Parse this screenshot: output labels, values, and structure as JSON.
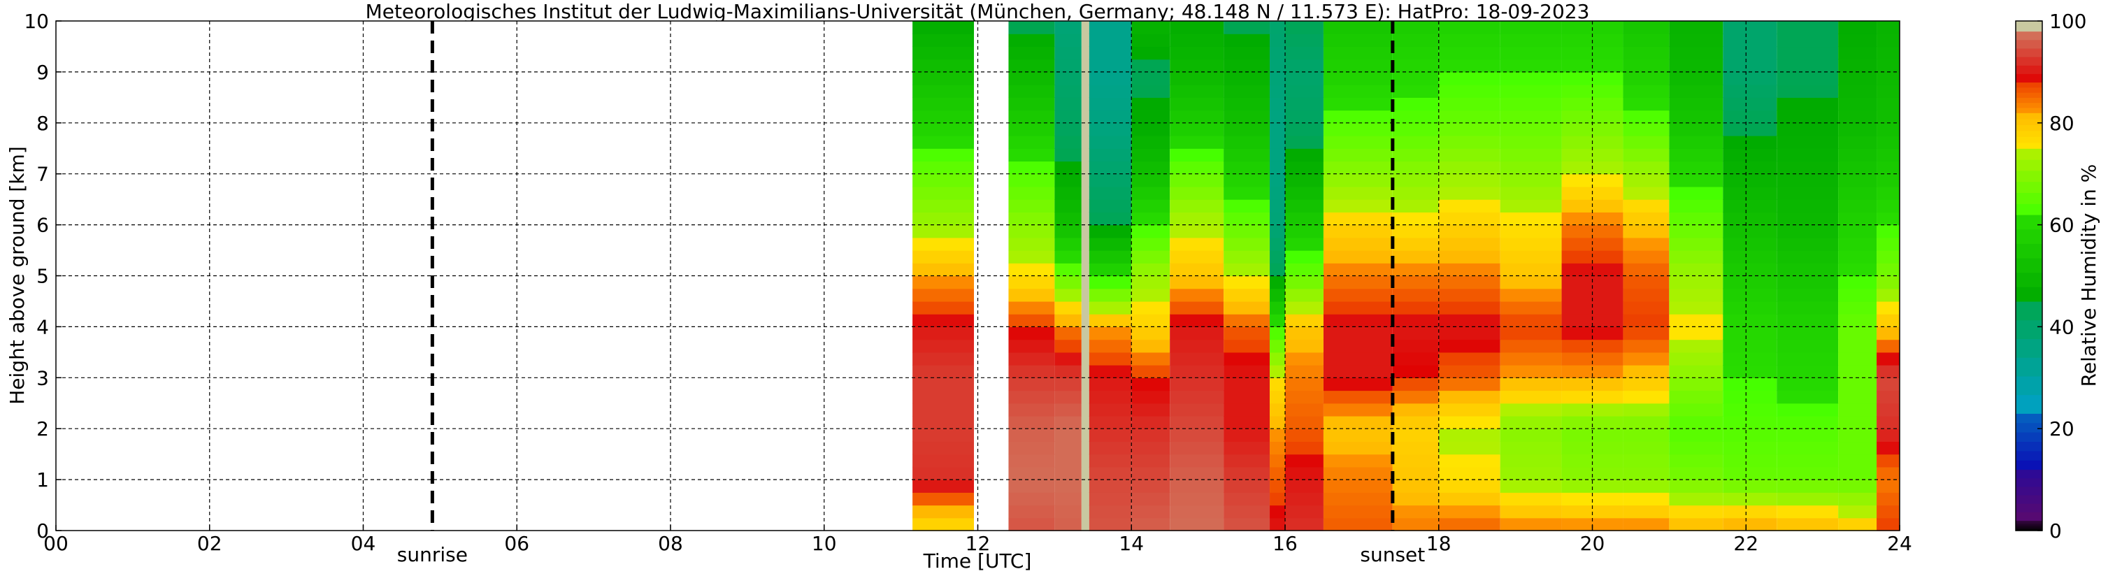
{
  "chart_data": {
    "type": "heatmap",
    "title": "Meteorologisches Institut der Ludwig-Maximilians-Universität (München, Germany; 48.148 N / 11.573 E):    HatPro: 18-09-2023",
    "xlabel": "Time [UTC]",
    "ylabel": "Height above ground [km]",
    "xlim": [
      0,
      24
    ],
    "ylim": [
      0,
      10
    ],
    "x_ticks": [
      "00",
      "02",
      "04",
      "06",
      "08",
      "10",
      "12",
      "14",
      "16",
      "18",
      "20",
      "22",
      "24"
    ],
    "y_ticks": [
      "0",
      "1",
      "2",
      "3",
      "4",
      "5",
      "6",
      "7",
      "8",
      "9",
      "10"
    ],
    "grid": true,
    "colorbar": {
      "label": "Relative Humidity in %",
      "range": [
        0,
        100
      ],
      "ticks": [
        "0",
        "20",
        "40",
        "60",
        "80",
        "100"
      ],
      "colors": [
        {
          "from": 0,
          "to": 2,
          "color": "#000000"
        },
        {
          "from": 2,
          "to": 12,
          "color": "#5a0a6e"
        },
        {
          "from": 12,
          "to": 23,
          "color": "#0a0ab4"
        },
        {
          "from": 23,
          "to": 45,
          "color": "#00a0c8"
        },
        {
          "from": 45,
          "to": 62,
          "color": "#00aa00"
        },
        {
          "from": 62,
          "to": 75,
          "color": "#44ff00"
        },
        {
          "from": 75,
          "to": 82,
          "color": "#ffe600"
        },
        {
          "from": 82,
          "to": 88,
          "color": "#ff9900"
        },
        {
          "from": 88,
          "to": 98,
          "color": "#e00000"
        },
        {
          "from": 98,
          "to": 100,
          "color": "#c8c8a0"
        }
      ]
    },
    "markers": [
      {
        "label": "sunrise",
        "time": 4.9
      },
      {
        "label": "sunset",
        "time": 17.4
      }
    ],
    "data_gaps": [
      [
        0,
        11.15
      ],
      [
        11.95,
        12.4
      ]
    ],
    "columns": [
      {
        "t0": 11.15,
        "t1": 11.95,
        "rh": [
          76,
          92,
          93,
          93,
          90,
          82,
          72,
          66,
          58,
          52,
          46
        ]
      },
      {
        "t0": 12.4,
        "t1": 13.0,
        "rh": [
          95,
          97,
          96,
          93,
          88,
          76,
          70,
          64,
          56,
          50,
          44
        ]
      },
      {
        "t0": 13.0,
        "t1": 13.35,
        "rh": [
          96,
          97,
          97,
          93,
          84,
          66,
          52,
          46,
          42,
          40,
          38
        ]
      },
      {
        "t0": 13.35,
        "t1": 13.45,
        "rh": [
          100,
          100,
          100,
          100,
          100,
          100,
          100,
          100,
          100,
          100,
          100
        ]
      },
      {
        "t0": 13.45,
        "t1": 14.0,
        "rh": [
          95,
          94,
          92,
          90,
          82,
          60,
          44,
          40,
          36,
          34,
          34
        ]
      },
      {
        "t0": 14.0,
        "t1": 14.5,
        "rh": [
          96,
          94,
          92,
          88,
          78,
          72,
          62,
          52,
          46,
          44,
          48
        ]
      },
      {
        "t0": 14.5,
        "t1": 15.2,
        "rh": [
          97,
          96,
          94,
          92,
          90,
          80,
          74,
          66,
          56,
          50,
          46
        ]
      },
      {
        "t0": 15.2,
        "t1": 15.8,
        "rh": [
          95,
          93,
          90,
          90,
          86,
          74,
          66,
          58,
          52,
          48,
          44
        ]
      },
      {
        "t0": 15.8,
        "t1": 16.0,
        "rh": [
          90,
          86,
          82,
          76,
          62,
          44,
          38,
          36,
          36,
          38,
          40
        ]
      },
      {
        "t0": 16.0,
        "t1": 16.5,
        "rh": [
          92,
          90,
          86,
          84,
          80,
          66,
          56,
          48,
          42,
          40,
          44
        ]
      },
      {
        "t0": 16.5,
        "t1": 17.4,
        "rh": [
          86,
          84,
          80,
          90,
          90,
          84,
          78,
          70,
          64,
          58,
          54
        ]
      },
      {
        "t0": 17.4,
        "t1": 18.0,
        "rh": [
          84,
          80,
          78,
          88,
          90,
          84,
          76,
          70,
          64,
          60,
          56
        ]
      },
      {
        "t0": 18.0,
        "t1": 18.8,
        "rh": [
          86,
          76,
          74,
          86,
          90,
          84,
          78,
          72,
          66,
          62,
          58
        ]
      },
      {
        "t0": 18.8,
        "t1": 19.6,
        "rh": [
          84,
          72,
          70,
          82,
          88,
          80,
          76,
          70,
          66,
          62,
          58
        ]
      },
      {
        "t0": 19.6,
        "t1": 20.4,
        "rh": [
          84,
          70,
          68,
          82,
          90,
          90,
          84,
          74,
          68,
          62,
          58
        ]
      },
      {
        "t0": 20.4,
        "t1": 21.0,
        "rh": [
          84,
          70,
          68,
          80,
          88,
          86,
          80,
          72,
          64,
          58,
          54
        ]
      },
      {
        "t0": 21.0,
        "t1": 21.7,
        "rh": [
          82,
          68,
          64,
          70,
          76,
          72,
          66,
          60,
          54,
          50,
          48
        ]
      },
      {
        "t0": 21.7,
        "t1": 22.4,
        "rh": [
          84,
          66,
          64,
          62,
          60,
          56,
          52,
          48,
          44,
          40,
          40
        ]
      },
      {
        "t0": 22.4,
        "t1": 23.2,
        "rh": [
          82,
          66,
          64,
          60,
          58,
          54,
          50,
          48,
          46,
          44,
          44
        ]
      },
      {
        "t0": 23.2,
        "t1": 23.7,
        "rh": [
          80,
          66,
          66,
          66,
          66,
          62,
          58,
          54,
          50,
          48,
          46
        ]
      },
      {
        "t0": 23.7,
        "t1": 24.0,
        "rh": [
          88,
          84,
          92,
          94,
          80,
          68,
          62,
          56,
          52,
          50,
          48
        ]
      }
    ]
  }
}
